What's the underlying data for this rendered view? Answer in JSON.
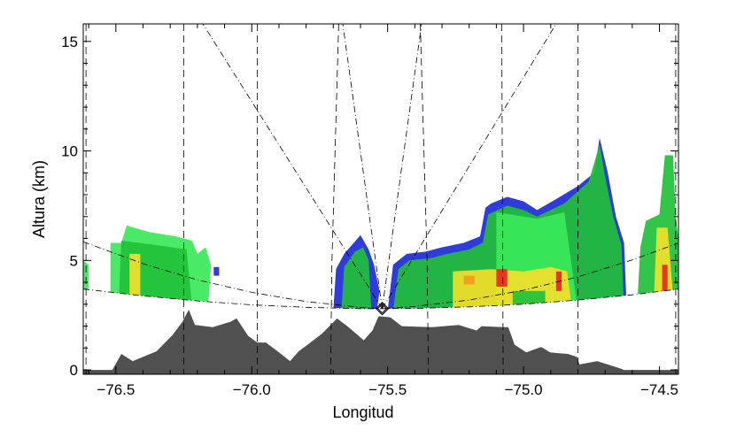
{
  "chart_data": {
    "type": "area",
    "title": "",
    "xlabel": "Longitud",
    "ylabel": "Altura (km)",
    "xlim": [
      -76.62,
      -74.43
    ],
    "ylim": [
      -0.2,
      15.8
    ],
    "xticks": [
      -76.5,
      -76.0,
      -75.5,
      -75.0,
      -74.5
    ],
    "xtick_labels": [
      "−76.5",
      "−76.0",
      "−75.5",
      "−75.0",
      "−74.5"
    ],
    "yticks": [
      0,
      5,
      10,
      15
    ],
    "ytick_labels": [
      "0",
      "5",
      "10",
      "15"
    ],
    "grid": false,
    "colors": {
      "terrain": "#505050",
      "blue": "#1e2bd6",
      "cyan": "#2fe8c8",
      "green": "#22c03a",
      "light_green": "#3be85a",
      "yellow": "#f2e02a",
      "orange": "#f39a1e",
      "red": "#e52a1c"
    },
    "radar_site": {
      "lon": -75.52,
      "alt": 2.8,
      "marker": "diamond"
    },
    "terrain": [
      [
        -76.62,
        0
      ],
      [
        -76.513,
        0
      ],
      [
        -76.48,
        0.73
      ],
      [
        -76.438,
        0.4
      ],
      [
        -76.35,
        0.85
      ],
      [
        -76.291,
        1.6
      ],
      [
        -76.255,
        2.2
      ],
      [
        -76.232,
        2.75
      ],
      [
        -76.209,
        2.05
      ],
      [
        -76.144,
        1.95
      ],
      [
        -76.078,
        2.2
      ],
      [
        -76.056,
        2.35
      ],
      [
        -76.013,
        1.55
      ],
      [
        -75.98,
        1.25
      ],
      [
        -75.948,
        1.25
      ],
      [
        -75.905,
        0.85
      ],
      [
        -75.859,
        0.4
      ],
      [
        -75.827,
        0.85
      ],
      [
        -75.784,
        1.25
      ],
      [
        -75.742,
        1.65
      ],
      [
        -75.686,
        2.35
      ],
      [
        -75.644,
        1.95
      ],
      [
        -75.588,
        1.35
      ],
      [
        -75.556,
        1.8
      ],
      [
        -75.533,
        2.45
      ],
      [
        -75.49,
        2.4
      ],
      [
        -75.448,
        2.0
      ],
      [
        -75.337,
        1.95
      ],
      [
        -75.239,
        2.05
      ],
      [
        -75.173,
        1.8
      ],
      [
        -75.154,
        2.0
      ],
      [
        -75.075,
        1.95
      ],
      [
        -75.056,
        1.95
      ],
      [
        -75.033,
        1.15
      ],
      [
        -74.99,
        0.8
      ],
      [
        -74.935,
        1.05
      ],
      [
        -74.902,
        0.8
      ],
      [
        -74.837,
        0.73
      ],
      [
        -74.804,
        0.6
      ],
      [
        -74.794,
        0.25
      ],
      [
        -74.729,
        0.4
      ],
      [
        -74.641,
        0.05
      ],
      [
        -74.631,
        0
      ],
      [
        -74.43,
        0
      ]
    ],
    "beam_lower": [
      [
        -76.62,
        3.69
      ],
      [
        -76.4,
        3.38
      ],
      [
        -76.2,
        3.15
      ],
      [
        -76.0,
        2.97
      ],
      [
        -75.8,
        2.86
      ],
      [
        -75.6,
        2.8
      ],
      [
        -75.52,
        2.8
      ],
      [
        -75.4,
        2.81
      ],
      [
        -75.2,
        2.88
      ],
      [
        -75.0,
        3.0
      ],
      [
        -74.8,
        3.19
      ],
      [
        -74.6,
        3.43
      ],
      [
        -74.43,
        3.69
      ]
    ],
    "beam_upper": [
      [
        -76.62,
        5.85
      ],
      [
        -76.4,
        4.85
      ],
      [
        -76.2,
        4.11
      ],
      [
        -76.0,
        3.54
      ],
      [
        -75.8,
        3.12
      ],
      [
        -75.6,
        2.86
      ],
      [
        -75.52,
        2.8
      ],
      [
        -75.4,
        2.9
      ],
      [
        -75.2,
        3.19
      ],
      [
        -75.0,
        3.64
      ],
      [
        -74.8,
        4.25
      ],
      [
        -74.6,
        5.02
      ],
      [
        -74.43,
        5.79
      ]
    ],
    "beam_rays": [
      [
        [
          -75.52,
          2.8
        ],
        [
          -76.18,
          15.8
        ]
      ],
      [
        [
          -75.52,
          2.8
        ],
        [
          -75.665,
          15.8
        ]
      ],
      [
        [
          -75.52,
          2.8
        ],
        [
          -75.375,
          15.8
        ]
      ],
      [
        [
          -75.52,
          2.8
        ],
        [
          -74.88,
          15.8
        ]
      ]
    ],
    "dashed_verticals": [
      [
        [
          -76.61,
          15.8
        ],
        [
          -76.61,
          -0.2
        ]
      ],
      [
        [
          -76.25,
          15.8
        ],
        [
          -76.25,
          -0.2
        ]
      ],
      [
        [
          -75.98,
          15.8
        ],
        [
          -75.98,
          -0.2
        ]
      ],
      [
        [
          -75.68,
          15.8
        ],
        [
          -75.705,
          5
        ],
        [
          -75.71,
          -0.2
        ]
      ],
      [
        [
          -75.38,
          15.8
        ],
        [
          -75.355,
          5
        ],
        [
          -75.35,
          -0.2
        ]
      ],
      [
        [
          -75.08,
          15.8
        ],
        [
          -75.075,
          -0.2
        ]
      ],
      [
        [
          -74.8,
          15.8
        ],
        [
          -74.8,
          -0.2
        ]
      ],
      [
        [
          -74.44,
          15.8
        ],
        [
          -74.44,
          -0.2
        ]
      ]
    ],
    "echoes": [
      {
        "color": "light_green",
        "points": [
          [
            -76.62,
            3.3
          ],
          [
            -76.62,
            5.0
          ],
          [
            -76.6,
            4.8
          ],
          [
            -76.6,
            3.3
          ]
        ]
      },
      {
        "color": "light_green",
        "points": [
          [
            -76.52,
            3.0
          ],
          [
            -76.52,
            5.8
          ],
          [
            -76.48,
            5.8
          ],
          [
            -76.46,
            6.6
          ],
          [
            -76.38,
            6.3
          ],
          [
            -76.28,
            6.1
          ],
          [
            -76.22,
            5.9
          ],
          [
            -76.2,
            5.3
          ],
          [
            -76.17,
            5.6
          ],
          [
            -76.15,
            4.8
          ],
          [
            -76.16,
            3.0
          ]
        ]
      },
      {
        "color": "green",
        "points": [
          [
            -76.49,
            3.0
          ],
          [
            -76.48,
            5.9
          ],
          [
            -76.35,
            5.7
          ],
          [
            -76.24,
            5.5
          ],
          [
            -76.22,
            3.0
          ]
        ]
      },
      {
        "color": "yellow",
        "points": [
          [
            -76.45,
            3.0
          ],
          [
            -76.45,
            5.3
          ],
          [
            -76.41,
            5.3
          ],
          [
            -76.41,
            3.0
          ]
        ]
      },
      {
        "color": "blue",
        "points": [
          [
            -76.14,
            4.3
          ],
          [
            -76.14,
            4.7
          ],
          [
            -76.12,
            4.7
          ],
          [
            -76.12,
            4.3
          ]
        ]
      },
      {
        "color": "blue",
        "points": [
          [
            -75.7,
            2.7
          ],
          [
            -75.69,
            4.6
          ],
          [
            -75.66,
            5.3
          ],
          [
            -75.6,
            6.15
          ],
          [
            -75.57,
            5.5
          ],
          [
            -75.55,
            4.8
          ],
          [
            -75.53,
            3.6
          ],
          [
            -75.54,
            2.7
          ]
        ]
      },
      {
        "color": "green",
        "points": [
          [
            -75.67,
            2.7
          ],
          [
            -75.66,
            4.7
          ],
          [
            -75.62,
            5.4
          ],
          [
            -75.59,
            5.6
          ],
          [
            -75.57,
            5.0
          ],
          [
            -75.56,
            2.7
          ]
        ]
      },
      {
        "color": "blue",
        "points": [
          [
            -75.5,
            2.7
          ],
          [
            -75.48,
            4.8
          ],
          [
            -75.43,
            5.3
          ],
          [
            -75.36,
            5.4
          ],
          [
            -75.3,
            5.6
          ],
          [
            -75.22,
            5.8
          ],
          [
            -75.16,
            6.1
          ],
          [
            -75.14,
            7.4
          ],
          [
            -75.12,
            7.6
          ],
          [
            -75.06,
            7.9
          ],
          [
            -75.0,
            7.7
          ],
          [
            -74.95,
            7.3
          ],
          [
            -74.88,
            7.8
          ],
          [
            -74.8,
            8.4
          ],
          [
            -74.74,
            9.0
          ],
          [
            -74.72,
            10.6
          ],
          [
            -74.69,
            9.0
          ],
          [
            -74.66,
            7.0
          ],
          [
            -74.63,
            5.8
          ],
          [
            -74.62,
            2.7
          ]
        ]
      },
      {
        "color": "green",
        "points": [
          [
            -75.48,
            2.7
          ],
          [
            -75.46,
            4.6
          ],
          [
            -75.42,
            5.0
          ],
          [
            -75.34,
            5.1
          ],
          [
            -75.28,
            5.3
          ],
          [
            -75.2,
            5.5
          ],
          [
            -75.15,
            5.8
          ],
          [
            -75.13,
            7.1
          ],
          [
            -75.06,
            7.5
          ],
          [
            -75.0,
            7.3
          ],
          [
            -74.95,
            7.0
          ],
          [
            -74.85,
            7.6
          ],
          [
            -74.76,
            8.6
          ],
          [
            -74.72,
            10.3
          ],
          [
            -74.7,
            8.8
          ],
          [
            -74.67,
            7.0
          ],
          [
            -74.64,
            5.7
          ],
          [
            -74.63,
            2.7
          ]
        ]
      },
      {
        "color": "light_green",
        "points": [
          [
            -75.1,
            2.7
          ],
          [
            -75.1,
            7.2
          ],
          [
            -74.95,
            6.9
          ],
          [
            -74.85,
            7.2
          ],
          [
            -74.8,
            2.7
          ]
        ]
      },
      {
        "color": "yellow",
        "points": [
          [
            -75.26,
            2.7
          ],
          [
            -75.26,
            4.5
          ],
          [
            -75.12,
            4.6
          ],
          [
            -75.0,
            4.5
          ],
          [
            -74.9,
            4.7
          ],
          [
            -74.84,
            4.5
          ],
          [
            -74.82,
            2.7
          ]
        ]
      },
      {
        "color": "green",
        "points": [
          [
            -75.04,
            2.7
          ],
          [
            -75.04,
            3.6
          ],
          [
            -74.92,
            3.6
          ],
          [
            -74.92,
            2.7
          ]
        ]
      },
      {
        "color": "red",
        "points": [
          [
            -75.1,
            3.8
          ],
          [
            -75.1,
            4.6
          ],
          [
            -75.06,
            4.6
          ],
          [
            -75.06,
            3.8
          ]
        ]
      },
      {
        "color": "red",
        "points": [
          [
            -74.88,
            3.6
          ],
          [
            -74.88,
            4.5
          ],
          [
            -74.86,
            4.5
          ],
          [
            -74.86,
            3.6
          ]
        ]
      },
      {
        "color": "orange",
        "points": [
          [
            -75.22,
            3.9
          ],
          [
            -75.22,
            4.3
          ],
          [
            -75.18,
            4.3
          ],
          [
            -75.18,
            3.9
          ]
        ]
      },
      {
        "color": "green",
        "points": [
          [
            -74.58,
            3.4
          ],
          [
            -74.57,
            5.6
          ],
          [
            -74.55,
            6.8
          ],
          [
            -74.5,
            7.1
          ],
          [
            -74.48,
            9.8
          ],
          [
            -74.45,
            9.8
          ],
          [
            -74.44,
            7.0
          ],
          [
            -74.43,
            6.0
          ],
          [
            -74.43,
            3.4
          ]
        ]
      },
      {
        "color": "yellow",
        "points": [
          [
            -74.52,
            3.4
          ],
          [
            -74.51,
            6.5
          ],
          [
            -74.47,
            6.5
          ],
          [
            -74.45,
            3.4
          ]
        ]
      },
      {
        "color": "red",
        "points": [
          [
            -74.49,
            3.5
          ],
          [
            -74.49,
            4.8
          ],
          [
            -74.47,
            4.8
          ],
          [
            -74.47,
            3.5
          ]
        ]
      }
    ]
  }
}
